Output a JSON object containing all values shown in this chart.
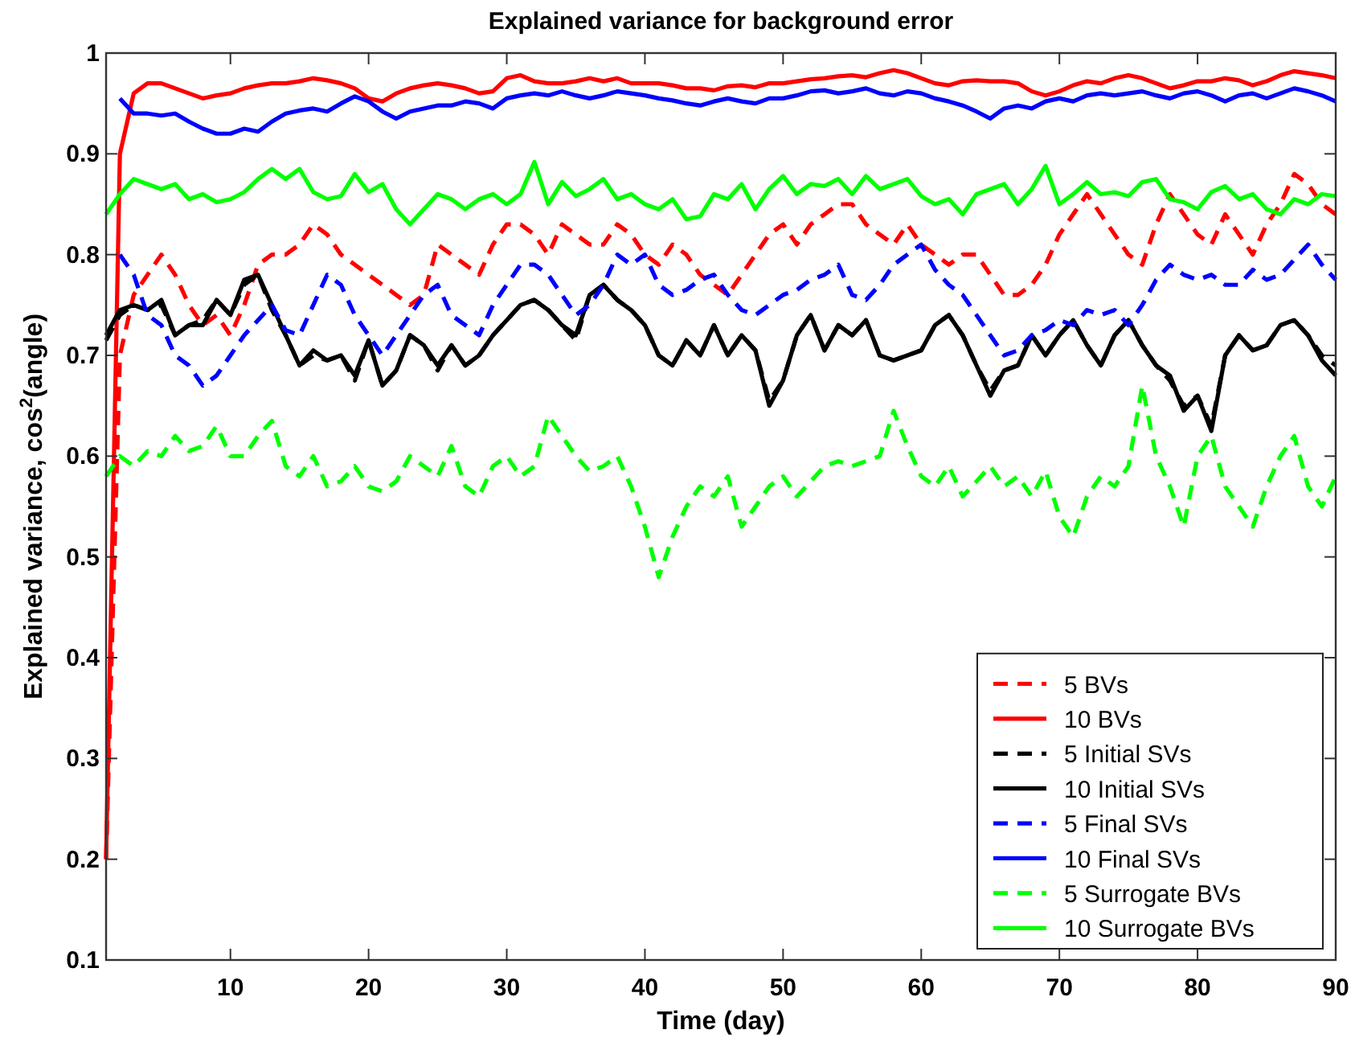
{
  "chart_data": {
    "type": "line",
    "title": "Explained variance for background error",
    "xlabel": "Time (day)",
    "ylabel": "Explained variance, cos$^{2}$(angle)",
    "x": [
      1,
      2,
      3,
      4,
      5,
      6,
      7,
      8,
      9,
      10,
      11,
      12,
      13,
      14,
      15,
      16,
      17,
      18,
      19,
      20,
      21,
      22,
      23,
      24,
      25,
      26,
      27,
      28,
      29,
      30,
      31,
      32,
      33,
      34,
      35,
      36,
      37,
      38,
      39,
      40,
      41,
      42,
      43,
      44,
      45,
      46,
      47,
      48,
      49,
      50,
      51,
      52,
      53,
      54,
      55,
      56,
      57,
      58,
      59,
      60,
      61,
      62,
      63,
      64,
      65,
      66,
      67,
      68,
      69,
      70,
      71,
      72,
      73,
      74,
      75,
      76,
      77,
      78,
      79,
      80,
      81,
      82,
      83,
      84,
      85,
      86,
      87,
      88,
      89,
      90
    ],
    "xlim": [
      1,
      90
    ],
    "xticks": [
      10,
      20,
      30,
      40,
      50,
      60,
      70,
      80,
      90
    ],
    "ylim": [
      0.1,
      1
    ],
    "yticks": [
      0.1,
      0.2,
      0.3,
      0.4,
      0.5,
      0.6,
      0.7,
      0.8,
      0.9,
      1
    ],
    "grid": false,
    "legend": "bottom right",
    "marker": "none",
    "series": [
      {
        "name": "5 BVs",
        "color": "#ff0000",
        "line_style": "dashed",
        "values": [
          0.2,
          0.7,
          0.76,
          0.78,
          0.8,
          0.78,
          0.75,
          0.73,
          0.74,
          0.72,
          0.75,
          0.79,
          0.8,
          0.8,
          0.81,
          0.83,
          0.82,
          0.8,
          0.79,
          0.78,
          0.77,
          0.76,
          0.75,
          0.76,
          0.81,
          0.8,
          0.79,
          0.78,
          0.81,
          0.83,
          0.83,
          0.82,
          0.8,
          0.83,
          0.82,
          0.81,
          0.81,
          0.83,
          0.82,
          0.8,
          0.79,
          0.81,
          0.8,
          0.78,
          0.77,
          0.76,
          0.78,
          0.8,
          0.82,
          0.83,
          0.81,
          0.83,
          0.84,
          0.85,
          0.85,
          0.83,
          0.82,
          0.81,
          0.83,
          0.81,
          0.8,
          0.79,
          0.8,
          0.8,
          0.78,
          0.76,
          0.76,
          0.77,
          0.79,
          0.82,
          0.84,
          0.86,
          0.84,
          0.82,
          0.8,
          0.79,
          0.83,
          0.86,
          0.84,
          0.82,
          0.81,
          0.84,
          0.82,
          0.8,
          0.83,
          0.85,
          0.88,
          0.87,
          0.85,
          0.84
        ]
      },
      {
        "name": "10 BVs",
        "color": "#ff0000",
        "line_style": "solid",
        "values": [
          0.2,
          0.9,
          0.96,
          0.97,
          0.97,
          0.965,
          0.96,
          0.955,
          0.958,
          0.96,
          0.965,
          0.968,
          0.97,
          0.97,
          0.972,
          0.975,
          0.973,
          0.97,
          0.965,
          0.955,
          0.952,
          0.96,
          0.965,
          0.968,
          0.97,
          0.968,
          0.965,
          0.96,
          0.962,
          0.975,
          0.978,
          0.972,
          0.97,
          0.97,
          0.972,
          0.975,
          0.972,
          0.975,
          0.97,
          0.97,
          0.97,
          0.968,
          0.965,
          0.965,
          0.963,
          0.967,
          0.968,
          0.966,
          0.97,
          0.97,
          0.972,
          0.974,
          0.975,
          0.977,
          0.978,
          0.976,
          0.98,
          0.983,
          0.98,
          0.975,
          0.97,
          0.968,
          0.972,
          0.973,
          0.972,
          0.972,
          0.97,
          0.962,
          0.958,
          0.962,
          0.968,
          0.972,
          0.97,
          0.975,
          0.978,
          0.975,
          0.97,
          0.965,
          0.968,
          0.972,
          0.972,
          0.975,
          0.973,
          0.968,
          0.972,
          0.978,
          0.982,
          0.98,
          0.978,
          0.975
        ]
      },
      {
        "name": "5 Initial SVs",
        "color": "#000000",
        "line_style": "dashed",
        "values": [
          0.715,
          0.74,
          0.75,
          0.745,
          0.75,
          0.72,
          0.73,
          0.735,
          0.755,
          0.74,
          0.77,
          0.78,
          0.745,
          0.72,
          0.69,
          0.7,
          0.695,
          0.7,
          0.675,
          0.715,
          0.67,
          0.685,
          0.72,
          0.71,
          0.685,
          0.71,
          0.69,
          0.7,
          0.72,
          0.735,
          0.75,
          0.755,
          0.745,
          0.73,
          0.715,
          0.76,
          0.77,
          0.755,
          0.745,
          0.73,
          0.7,
          0.69,
          0.715,
          0.7,
          0.73,
          0.7,
          0.72,
          0.705,
          0.655,
          0.675,
          0.72,
          0.74,
          0.705,
          0.73,
          0.72,
          0.735,
          0.7,
          0.695,
          0.7,
          0.705,
          0.73,
          0.74,
          0.72,
          0.69,
          0.665,
          0.685,
          0.69,
          0.72,
          0.7,
          0.72,
          0.735,
          0.71,
          0.69,
          0.72,
          0.735,
          0.71,
          0.69,
          0.675,
          0.65,
          0.66,
          0.63,
          0.7,
          0.72,
          0.705,
          0.71,
          0.73,
          0.735,
          0.72,
          0.7,
          0.69
        ]
      },
      {
        "name": "10 Initial SVs",
        "color": "#000000",
        "line_style": "solid",
        "values": [
          0.72,
          0.745,
          0.75,
          0.745,
          0.755,
          0.72,
          0.73,
          0.73,
          0.755,
          0.74,
          0.775,
          0.78,
          0.75,
          0.72,
          0.69,
          0.705,
          0.695,
          0.7,
          0.68,
          0.715,
          0.67,
          0.685,
          0.72,
          0.71,
          0.69,
          0.71,
          0.69,
          0.7,
          0.72,
          0.735,
          0.75,
          0.755,
          0.745,
          0.73,
          0.72,
          0.76,
          0.77,
          0.755,
          0.745,
          0.73,
          0.7,
          0.69,
          0.715,
          0.7,
          0.73,
          0.7,
          0.72,
          0.705,
          0.65,
          0.675,
          0.72,
          0.74,
          0.705,
          0.73,
          0.72,
          0.735,
          0.7,
          0.695,
          0.7,
          0.705,
          0.73,
          0.74,
          0.72,
          0.69,
          0.66,
          0.685,
          0.69,
          0.72,
          0.7,
          0.72,
          0.735,
          0.71,
          0.69,
          0.72,
          0.735,
          0.71,
          0.69,
          0.68,
          0.645,
          0.66,
          0.625,
          0.7,
          0.72,
          0.705,
          0.71,
          0.73,
          0.735,
          0.72,
          0.695,
          0.68
        ]
      },
      {
        "name": "5 Final SVs",
        "color": "#0000ff",
        "line_style": "dashed",
        "values": [
          null,
          0.8,
          0.78,
          0.74,
          0.73,
          0.7,
          0.69,
          0.67,
          0.68,
          0.7,
          0.72,
          0.735,
          0.75,
          0.725,
          0.72,
          0.75,
          0.78,
          0.77,
          0.74,
          0.72,
          0.7,
          0.72,
          0.74,
          0.76,
          0.77,
          0.74,
          0.73,
          0.72,
          0.75,
          0.77,
          0.79,
          0.79,
          0.78,
          0.76,
          0.74,
          0.75,
          0.77,
          0.8,
          0.79,
          0.8,
          0.77,
          0.76,
          0.765,
          0.775,
          0.78,
          0.76,
          0.745,
          0.74,
          0.75,
          0.76,
          0.765,
          0.775,
          0.78,
          0.79,
          0.76,
          0.755,
          0.77,
          0.79,
          0.8,
          0.81,
          0.785,
          0.77,
          0.76,
          0.74,
          0.72,
          0.7,
          0.705,
          0.72,
          0.725,
          0.735,
          0.73,
          0.745,
          0.74,
          0.745,
          0.73,
          0.75,
          0.775,
          0.79,
          0.78,
          0.775,
          0.78,
          0.77,
          0.77,
          0.785,
          0.775,
          0.78,
          0.795,
          0.81,
          0.79,
          0.775
        ]
      },
      {
        "name": "10 Final SVs",
        "color": "#0000ff",
        "line_style": "solid",
        "values": [
          null,
          0.955,
          0.94,
          0.94,
          0.938,
          0.94,
          0.932,
          0.925,
          0.92,
          0.92,
          0.925,
          0.922,
          0.932,
          0.94,
          0.943,
          0.945,
          0.942,
          0.95,
          0.957,
          0.952,
          0.942,
          0.935,
          0.942,
          0.945,
          0.948,
          0.948,
          0.952,
          0.95,
          0.945,
          0.955,
          0.958,
          0.96,
          0.958,
          0.962,
          0.958,
          0.955,
          0.958,
          0.962,
          0.96,
          0.958,
          0.955,
          0.953,
          0.95,
          0.948,
          0.952,
          0.955,
          0.952,
          0.95,
          0.955,
          0.955,
          0.958,
          0.962,
          0.963,
          0.96,
          0.962,
          0.965,
          0.96,
          0.958,
          0.962,
          0.96,
          0.955,
          0.952,
          0.948,
          0.942,
          0.935,
          0.945,
          0.948,
          0.945,
          0.952,
          0.955,
          0.952,
          0.958,
          0.96,
          0.958,
          0.96,
          0.962,
          0.958,
          0.955,
          0.96,
          0.962,
          0.958,
          0.952,
          0.958,
          0.96,
          0.955,
          0.96,
          0.965,
          0.962,
          0.958,
          0.952
        ]
      },
      {
        "name": "5 Surrogate BVs",
        "color": "#00ff00",
        "line_style": "dashed",
        "values": [
          0.58,
          0.6,
          0.59,
          0.605,
          0.6,
          0.62,
          0.605,
          0.61,
          0.63,
          0.6,
          0.6,
          0.62,
          0.635,
          0.59,
          0.58,
          0.6,
          0.57,
          0.575,
          0.59,
          0.57,
          0.565,
          0.575,
          0.6,
          0.59,
          0.58,
          0.61,
          0.57,
          0.56,
          0.59,
          0.6,
          0.58,
          0.59,
          0.64,
          0.62,
          0.6,
          0.585,
          0.59,
          0.6,
          0.57,
          0.53,
          0.48,
          0.52,
          0.55,
          0.57,
          0.56,
          0.58,
          0.53,
          0.55,
          0.57,
          0.58,
          0.56,
          0.575,
          0.59,
          0.595,
          0.59,
          0.595,
          0.6,
          0.645,
          0.61,
          0.58,
          0.57,
          0.59,
          0.56,
          0.575,
          0.59,
          0.57,
          0.58,
          0.56,
          0.585,
          0.54,
          0.52,
          0.56,
          0.58,
          0.57,
          0.59,
          0.67,
          0.6,
          0.57,
          0.53,
          0.6,
          0.62,
          0.57,
          0.55,
          0.53,
          0.57,
          0.6,
          0.62,
          0.57,
          0.55,
          0.58
        ]
      },
      {
        "name": "10 Surrogate BVs",
        "color": "#00ff00",
        "line_style": "solid",
        "values": [
          0.84,
          0.86,
          0.875,
          0.87,
          0.865,
          0.87,
          0.855,
          0.86,
          0.852,
          0.855,
          0.862,
          0.875,
          0.885,
          0.875,
          0.885,
          0.862,
          0.855,
          0.858,
          0.88,
          0.862,
          0.87,
          0.845,
          0.83,
          0.845,
          0.86,
          0.855,
          0.845,
          0.855,
          0.86,
          0.85,
          0.86,
          0.892,
          0.85,
          0.872,
          0.858,
          0.865,
          0.875,
          0.855,
          0.86,
          0.85,
          0.845,
          0.855,
          0.835,
          0.838,
          0.86,
          0.855,
          0.87,
          0.845,
          0.865,
          0.878,
          0.86,
          0.87,
          0.868,
          0.875,
          0.86,
          0.878,
          0.865,
          0.87,
          0.875,
          0.858,
          0.85,
          0.855,
          0.84,
          0.86,
          0.865,
          0.87,
          0.85,
          0.865,
          0.888,
          0.85,
          0.86,
          0.872,
          0.86,
          0.862,
          0.858,
          0.872,
          0.875,
          0.855,
          0.852,
          0.845,
          0.862,
          0.868,
          0.855,
          0.86,
          0.845,
          0.84,
          0.855,
          0.85,
          0.86,
          0.858
        ]
      }
    ]
  }
}
